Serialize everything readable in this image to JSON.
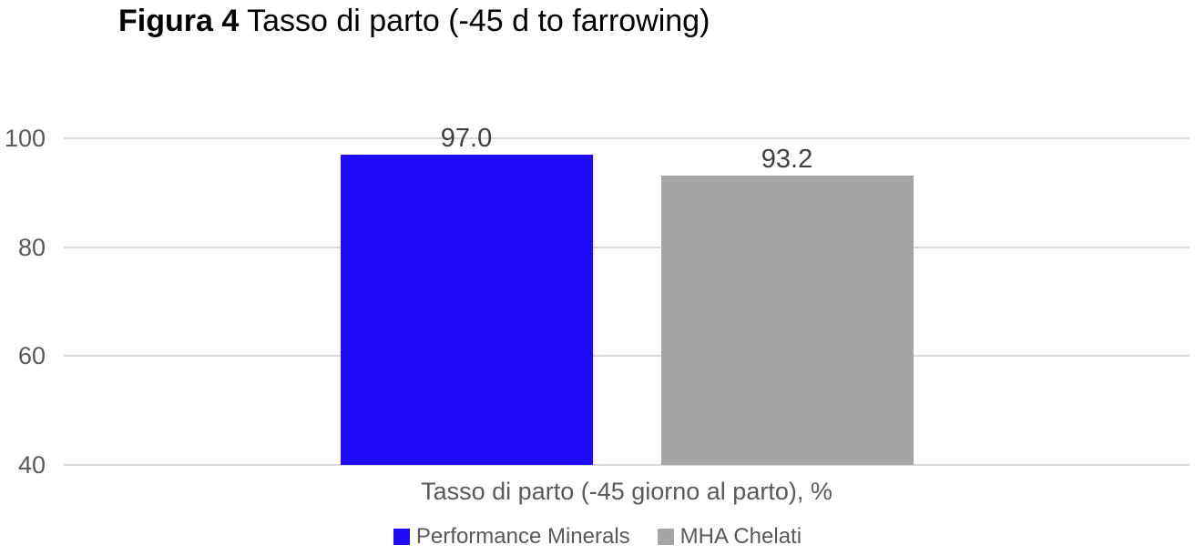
{
  "figure": {
    "title_prefix": "Figura 4",
    "title_rest": "Tasso di parto (-45 d to farrowing)"
  },
  "chart_data": {
    "type": "bar",
    "title": "Figura 4 Tasso di parto (-45 d to farrowing)",
    "categories": [
      "Tasso di parto (-45 giorno al parto), %"
    ],
    "series": [
      {
        "name": "Performance Minerals",
        "values": [
          97.0
        ],
        "data_label": "97.0",
        "color": "#1d0cf5"
      },
      {
        "name": "MHA Chelati",
        "values": [
          93.2
        ],
        "data_label": "93.2",
        "color": "#a5a5a5"
      }
    ],
    "xlabel": "Tasso di parto (-45 giorno al parto), %",
    "ylabel": "",
    "ylim": [
      40,
      100
    ],
    "yticks": [
      40,
      60,
      80,
      100
    ],
    "grid": true,
    "legend_position": "bottom",
    "colors": {
      "gridline": "#d9d9d9",
      "axis_text": "#595959",
      "data_label_text": "#404040",
      "title_text": "#000000",
      "background": "#ffffff"
    }
  }
}
